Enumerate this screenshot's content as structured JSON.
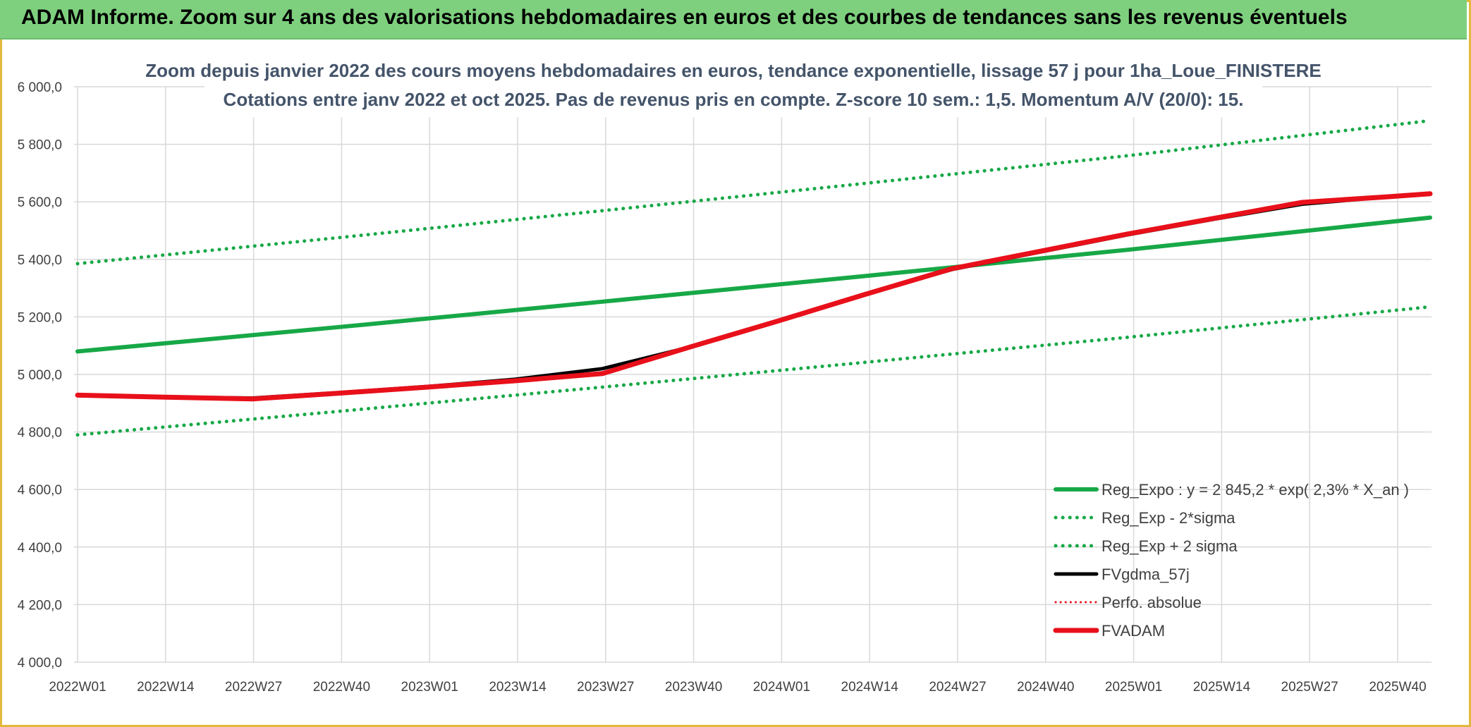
{
  "header": {
    "title": "ADAM Informe. Zoom sur 4 ans des valorisations hebdomadaires en euros et des courbes de tendances sans les revenus éventuels"
  },
  "chart_data": {
    "type": "line",
    "title_line1": "Zoom depuis janvier 2022 des cours moyens hebdomadaires en euros, tendance exponentielle, lissage 57 j pour 1ha_Loue_FINISTERE",
    "title_line2": "Cotations entre janv 2022 et oct 2025. Pas de revenus pris en compte. Z-score 10 sem.: 1,5. Momentum A/V (20/0): 15.",
    "ylim": [
      4000,
      6000
    ],
    "y_ticks": [
      "4 000,0",
      "4 200,0",
      "4 400,0",
      "4 600,0",
      "4 800,0",
      "5 000,0",
      "5 200,0",
      "5 400,0",
      "5 600,0",
      "5 800,0",
      "6 000,0"
    ],
    "x_ticks": [
      "2022W01",
      "2022W14",
      "2022W27",
      "2022W40",
      "2023W01",
      "2023W14",
      "2023W27",
      "2023W40",
      "2024W01",
      "2024W14",
      "2024W27",
      "2024W40",
      "2025W01",
      "2025W14",
      "2025W27",
      "2025W40"
    ],
    "x_range_weeks": [
      1,
      202
    ],
    "grid": true,
    "legend_position": "bottom-right",
    "series": [
      {
        "name": "Reg_Expo : y = 2 845,2 * exp( 2,3% *  X_an )",
        "color": "#17a847",
        "style": "solid",
        "x": [
          1,
          40,
          79,
          118,
          157,
          202
        ],
        "values": [
          5080,
          5165,
          5253,
          5342,
          5433,
          5545
        ]
      },
      {
        "name": "Reg_Exp - 2*sigma",
        "color": "#17a847",
        "style": "dotted",
        "x": [
          1,
          40,
          79,
          118,
          157,
          202
        ],
        "values": [
          4790,
          4872,
          4956,
          5042,
          5129,
          5235
        ]
      },
      {
        "name": "Reg_Exp + 2 sigma",
        "color": "#17a847",
        "style": "dotted",
        "x": [
          1,
          40,
          79,
          118,
          157,
          202
        ],
        "values": [
          5385,
          5476,
          5569,
          5664,
          5760,
          5882
        ]
      },
      {
        "name": "FVgdma_57j",
        "color": "#000000",
        "style": "solid",
        "x": [
          1,
          14,
          27,
          40,
          53,
          66,
          79,
          92,
          105,
          118,
          131,
          144,
          157,
          170,
          183,
          196,
          202
        ],
        "values": [
          4928,
          4921,
          4918,
          4937,
          4958,
          4983,
          5020,
          5095,
          5185,
          5280,
          5365,
          5425,
          5485,
          5540,
          5592,
          5618,
          5630
        ]
      },
      {
        "name": "Perfo. absolue",
        "color": "#e8101a",
        "style": "dotted",
        "x": [
          1,
          14,
          27,
          40,
          53,
          66,
          79,
          92,
          105,
          118,
          131,
          144,
          157,
          170,
          183,
          196,
          202
        ],
        "values": [
          4928,
          4921,
          4916,
          4936,
          4957,
          4980,
          5005,
          5095,
          5185,
          5280,
          5370,
          5430,
          5490,
          5545,
          5600,
          5620,
          5630
        ]
      },
      {
        "name": "FVADAM",
        "color": "#e8101a",
        "style": "solid",
        "x": [
          1,
          14,
          27,
          40,
          53,
          66,
          79,
          92,
          105,
          118,
          131,
          144,
          157,
          170,
          183,
          196,
          202
        ],
        "values": [
          4928,
          4921,
          4915,
          4935,
          4956,
          4978,
          5003,
          5095,
          5185,
          5278,
          5368,
          5428,
          5488,
          5543,
          5598,
          5618,
          5628
        ]
      }
    ]
  }
}
